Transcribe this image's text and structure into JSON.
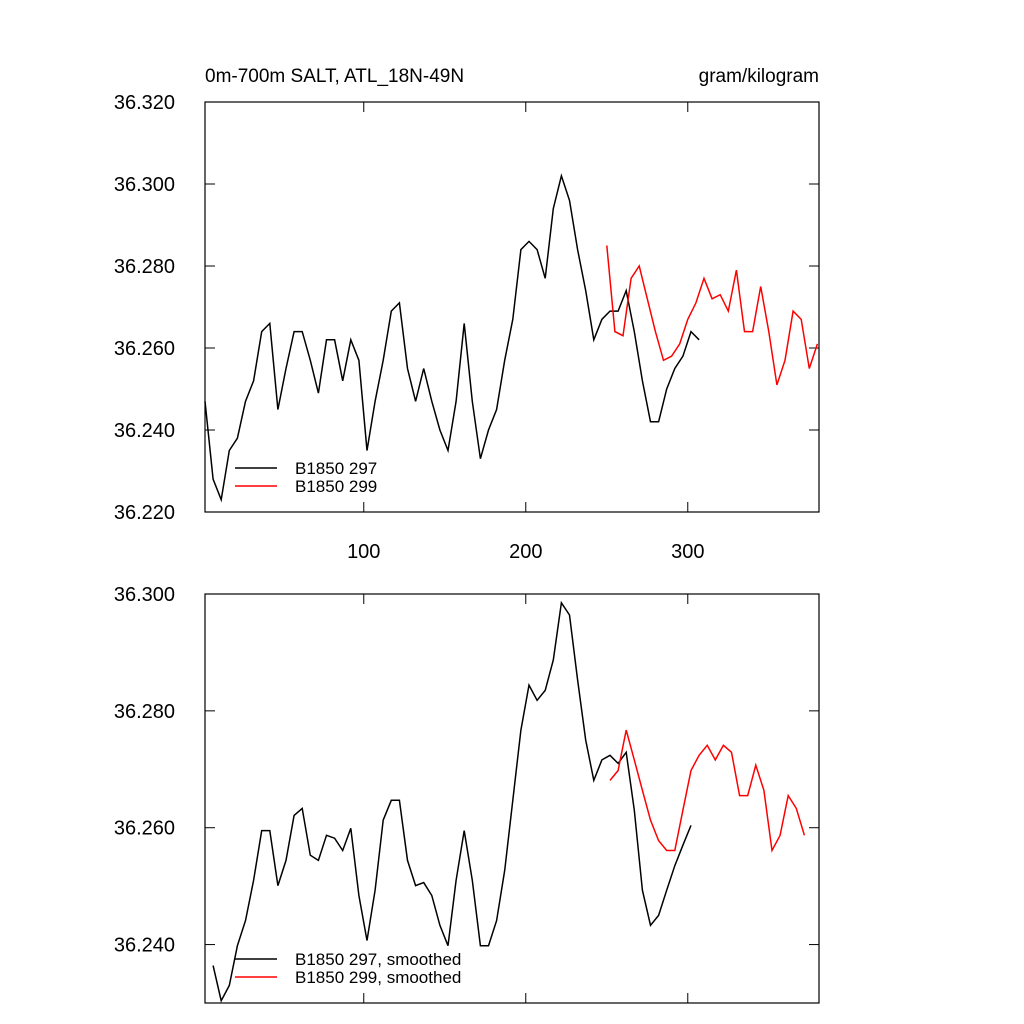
{
  "chart_data": [
    {
      "type": "line",
      "title": "0m-700m SALT, ATL_18N-49N",
      "units": "gram/kilogram",
      "xlim": [
        2,
        381
      ],
      "xticks": [
        100,
        200,
        300
      ],
      "ylim": [
        36.22,
        36.32
      ],
      "yticks": [
        {
          "value": 36.22,
          "label": "36.220"
        },
        {
          "value": 36.24,
          "label": "36.240"
        },
        {
          "value": 36.26,
          "label": "36.260"
        },
        {
          "value": 36.28,
          "label": "36.280"
        },
        {
          "value": 36.3,
          "label": "36.300"
        },
        {
          "value": 36.32,
          "label": "36.320"
        }
      ],
      "legend": "lower left",
      "show_xtick_labels": true,
      "series": [
        {
          "name": "B1850 297",
          "color": "#000000",
          "x": [
            2,
            7,
            12,
            17,
            22,
            27,
            32,
            37,
            42,
            47,
            52,
            57,
            62,
            67,
            72,
            77,
            82,
            87,
            92,
            97,
            102,
            107,
            112,
            117,
            122,
            127,
            132,
            137,
            142,
            147,
            152,
            157,
            162,
            167,
            172,
            177,
            182,
            187,
            192,
            197,
            202,
            207,
            212,
            217,
            222,
            227,
            232,
            237,
            242,
            247,
            252,
            257,
            262,
            267,
            272,
            277,
            282,
            287,
            292,
            297,
            302,
            307
          ],
          "values": [
            36.247,
            36.228,
            36.223,
            36.235,
            36.238,
            36.247,
            36.252,
            36.264,
            36.266,
            36.245,
            36.255,
            36.264,
            36.264,
            36.257,
            36.249,
            36.262,
            36.262,
            36.252,
            36.262,
            36.257,
            36.235,
            36.247,
            36.257,
            36.269,
            36.271,
            36.255,
            36.247,
            36.255,
            36.247,
            36.24,
            36.235,
            36.247,
            36.266,
            36.247,
            36.233,
            36.24,
            36.245,
            36.257,
            36.267,
            36.284,
            36.286,
            36.284,
            36.277,
            36.294,
            36.302,
            36.296,
            36.284,
            36.274,
            36.262,
            36.267,
            36.269,
            36.269,
            36.274,
            36.264,
            36.252,
            36.242,
            36.242,
            36.25,
            36.255,
            36.258,
            36.264,
            36.262
          ]
        },
        {
          "name": "B1850 299",
          "color": "#ff0000",
          "x": [
            250,
            255,
            260,
            265,
            270,
            275,
            280,
            285,
            290,
            295,
            300,
            305,
            310,
            315,
            320,
            325,
            330,
            335,
            340,
            345,
            350,
            355,
            360,
            365,
            370,
            375,
            380
          ],
          "values": [
            36.285,
            36.264,
            36.263,
            36.277,
            36.28,
            36.272,
            36.264,
            36.257,
            36.258,
            36.261,
            36.267,
            36.271,
            36.277,
            36.272,
            36.273,
            36.269,
            36.279,
            36.264,
            36.264,
            36.275,
            36.264,
            36.251,
            36.257,
            36.269,
            36.267,
            36.255,
            36.261
          ]
        }
      ]
    },
    {
      "type": "line",
      "xlim": [
        2,
        381
      ],
      "xticks": [
        100,
        200,
        300
      ],
      "ylim": [
        36.23,
        36.3
      ],
      "yticks": [
        {
          "value": 36.24,
          "label": "36.240"
        },
        {
          "value": 36.26,
          "label": "36.260"
        },
        {
          "value": 36.28,
          "label": "36.280"
        },
        {
          "value": 36.3,
          "label": "36.300"
        }
      ],
      "legend": "lower left",
      "show_xtick_labels": false,
      "series": [
        {
          "name": "B1850 297, smoothed",
          "color": "#000000",
          "x": [
            7,
            12,
            17,
            22,
            27,
            32,
            37,
            42,
            47,
            52,
            57,
            62,
            67,
            72,
            77,
            82,
            87,
            92,
            97,
            102,
            107,
            112,
            117,
            122,
            127,
            132,
            137,
            142,
            147,
            152,
            157,
            162,
            167,
            172,
            177,
            182,
            187,
            192,
            197,
            202,
            207,
            212,
            217,
            222,
            227,
            232,
            237,
            242,
            247,
            252,
            257,
            262,
            267,
            272,
            277,
            282,
            287,
            292,
            297,
            302
          ],
          "values": [
            36.2364,
            36.2304,
            36.233,
            36.2398,
            36.2441,
            36.251,
            36.2595,
            36.2595,
            36.2501,
            36.2544,
            36.2621,
            36.2633,
            36.2553,
            36.2544,
            36.2587,
            36.2582,
            36.2561,
            36.2599,
            36.2484,
            36.2407,
            36.2493,
            36.2613,
            36.2647,
            36.2647,
            36.2544,
            36.2501,
            36.2506,
            36.2484,
            36.2433,
            36.2398,
            36.251,
            36.2595,
            36.251,
            36.2398,
            36.2398,
            36.2441,
            36.2527,
            36.2647,
            36.2767,
            36.2844,
            36.2818,
            36.2835,
            36.2887,
            36.2985,
            36.2964,
            36.2853,
            36.275,
            36.2681,
            36.2716,
            36.2724,
            36.271,
            36.2729,
            36.263,
            36.2493,
            36.2433,
            36.245,
            36.2493,
            36.2535,
            36.257,
            36.2604
          ]
        },
        {
          "name": "B1850 299, smoothed",
          "color": "#ff0000",
          "x": [
            252,
            257,
            262,
            267,
            272,
            277,
            282,
            287,
            292,
            297,
            302,
            307,
            312,
            317,
            322,
            327,
            332,
            337,
            342,
            347,
            352,
            357,
            362,
            367,
            372
          ],
          "values": [
            36.2681,
            36.2698,
            36.2767,
            36.2716,
            36.2664,
            36.2613,
            36.2578,
            36.2561,
            36.2561,
            36.263,
            36.2698,
            36.2724,
            36.2741,
            36.2716,
            36.2741,
            36.2729,
            36.2655,
            36.2655,
            36.2707,
            36.2664,
            36.2561,
            36.2587,
            36.2655,
            36.2633,
            36.2587
          ]
        }
      ]
    }
  ]
}
